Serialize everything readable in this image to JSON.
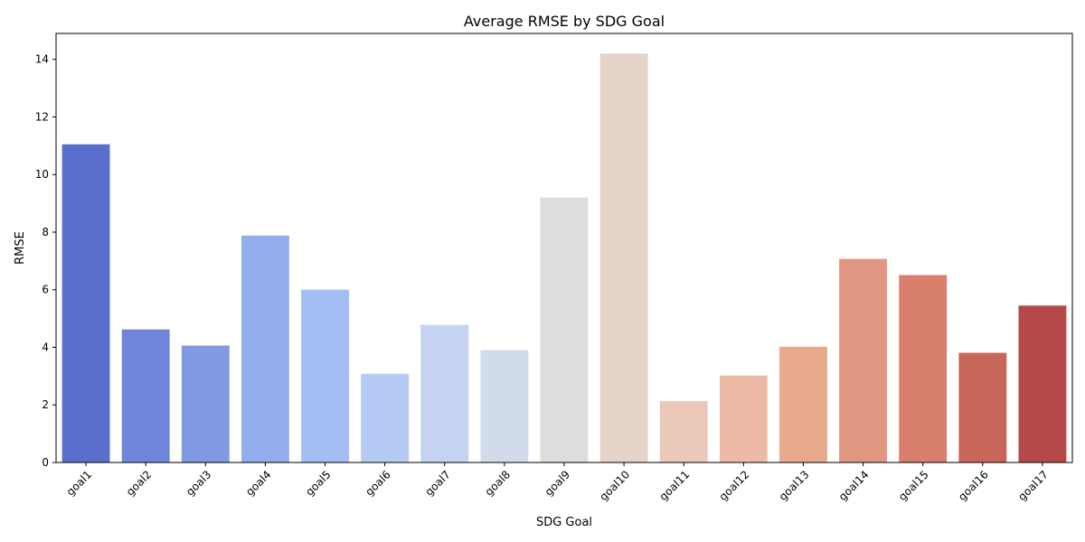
{
  "chart_data": {
    "type": "bar",
    "title": "Average RMSE by SDG Goal",
    "xlabel": "SDG Goal",
    "ylabel": "RMSE",
    "categories": [
      "goal1",
      "goal2",
      "goal3",
      "goal4",
      "goal5",
      "goal6",
      "goal7",
      "goal8",
      "goal9",
      "goal10",
      "goal11",
      "goal12",
      "goal13",
      "goal14",
      "goal15",
      "goal16",
      "goal17"
    ],
    "values": [
      11.05,
      4.62,
      4.06,
      7.88,
      6.0,
      3.08,
      4.78,
      3.9,
      9.2,
      14.2,
      2.13,
      3.02,
      4.02,
      7.07,
      6.51,
      3.81,
      5.45
    ],
    "colors": [
      "#5a6fcb",
      "#6d86dc",
      "#7f99e3",
      "#91adee",
      "#a4bef5",
      "#b5cbf4",
      "#c4d4f0",
      "#d2dbea",
      "#dddddd",
      "#e6d3ca",
      "#ebc8b8",
      "#edbba5",
      "#e8aa8d",
      "#e09680",
      "#d97f6d",
      "#c8665a",
      "#b5494a"
    ],
    "ylim": [
      0,
      14.9
    ],
    "yticks": [
      0,
      2,
      4,
      6,
      8,
      10,
      12,
      14
    ],
    "grid": false,
    "legend": "none"
  }
}
